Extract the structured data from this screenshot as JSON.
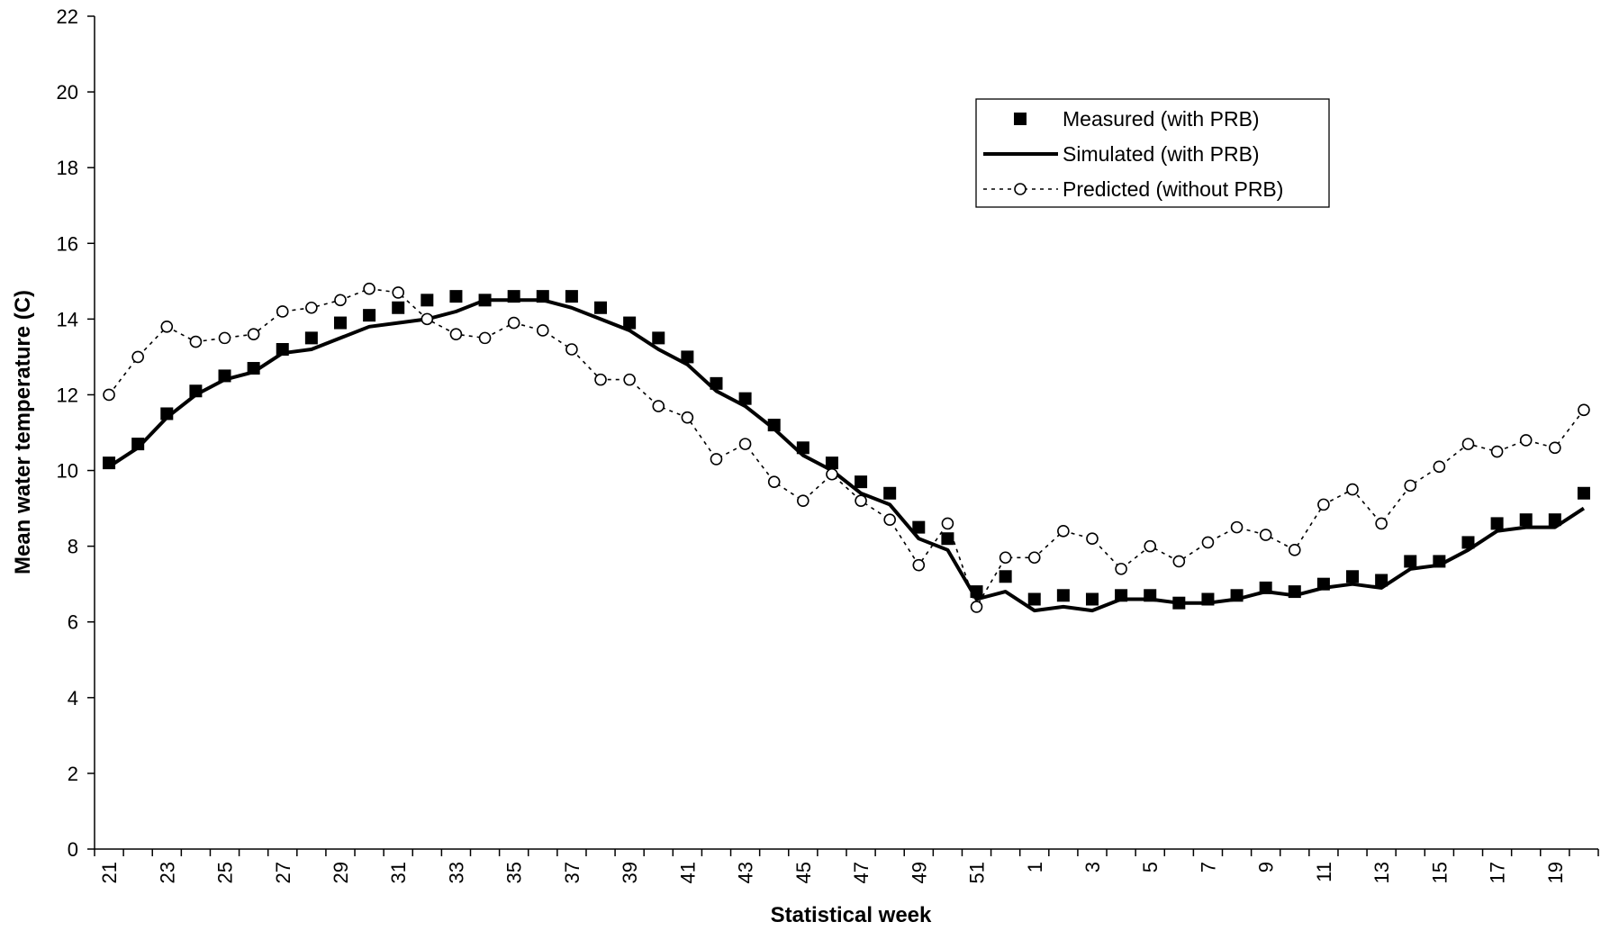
{
  "chart_data": {
    "type": "line",
    "title": "",
    "xlabel": "Statistical week",
    "ylabel": "Mean water temperature (C)",
    "ylim": [
      0,
      22
    ],
    "yticks": [
      0,
      2,
      4,
      6,
      8,
      10,
      12,
      14,
      16,
      18,
      20,
      22
    ],
    "grid": false,
    "legend_position": "top-right",
    "categories": [
      "21",
      "22",
      "23",
      "24",
      "25",
      "26",
      "27",
      "28",
      "29",
      "30",
      "31",
      "32",
      "33",
      "34",
      "35",
      "36",
      "37",
      "38",
      "39",
      "40",
      "41",
      "42",
      "43",
      "44",
      "45",
      "46",
      "47",
      "48",
      "49",
      "50",
      "51",
      "52",
      "1",
      "2",
      "3",
      "4",
      "5",
      "6",
      "7",
      "8",
      "9",
      "10",
      "11",
      "12",
      "13",
      "14",
      "15",
      "16",
      "17",
      "18",
      "19",
      "20"
    ],
    "xtick_labels": [
      "21",
      "",
      "23",
      "",
      "25",
      "",
      "27",
      "",
      "29",
      "",
      "31",
      "",
      "33",
      "",
      "35",
      "",
      "37",
      "",
      "39",
      "",
      "41",
      "",
      "43",
      "",
      "45",
      "",
      "47",
      "",
      "49",
      "",
      "51",
      "",
      "1",
      "",
      "3",
      "",
      "5",
      "",
      "7",
      "",
      "9",
      "",
      "11",
      "",
      "13",
      "",
      "15",
      "",
      "17",
      "",
      "19",
      ""
    ],
    "series": [
      {
        "name": "Measured (with PRB)",
        "style": "square-markers",
        "color": "#000000",
        "values": [
          10.2,
          10.7,
          11.5,
          12.1,
          12.5,
          12.7,
          13.2,
          13.5,
          13.9,
          14.1,
          14.3,
          14.5,
          14.6,
          14.5,
          14.6,
          14.6,
          14.6,
          14.3,
          13.9,
          13.5,
          13.0,
          12.3,
          11.9,
          11.2,
          10.6,
          10.2,
          9.7,
          9.4,
          8.5,
          8.2,
          6.8,
          7.2,
          6.6,
          6.7,
          6.6,
          6.7,
          6.7,
          6.5,
          6.6,
          6.7,
          6.9,
          6.8,
          7.0,
          7.2,
          7.1,
          7.6,
          7.6,
          8.1,
          8.6,
          8.7,
          8.7,
          9.4
        ]
      },
      {
        "name": "Simulated (with PRB)",
        "style": "solid-line",
        "color": "#000000",
        "values": [
          10.1,
          10.6,
          11.4,
          12.0,
          12.4,
          12.6,
          13.1,
          13.2,
          13.5,
          13.8,
          13.9,
          14.0,
          14.2,
          14.5,
          14.5,
          14.5,
          14.3,
          14.0,
          13.7,
          13.2,
          12.8,
          12.1,
          11.7,
          11.1,
          10.4,
          10.0,
          9.4,
          9.1,
          8.2,
          7.9,
          6.6,
          6.8,
          6.3,
          6.4,
          6.3,
          6.6,
          6.6,
          6.5,
          6.5,
          6.6,
          6.8,
          6.7,
          6.9,
          7.0,
          6.9,
          7.4,
          7.5,
          7.9,
          8.4,
          8.5,
          8.5,
          9.0
        ]
      },
      {
        "name": "Predicted (without PRB)",
        "style": "dotted-line-open-circles",
        "color": "#000000",
        "values": [
          12.0,
          13.0,
          13.8,
          13.4,
          13.5,
          13.6,
          14.2,
          14.3,
          14.5,
          14.8,
          14.7,
          14.0,
          13.6,
          13.5,
          13.9,
          13.7,
          13.2,
          12.4,
          12.4,
          11.7,
          11.4,
          10.3,
          10.7,
          9.7,
          9.2,
          9.9,
          9.2,
          8.7,
          7.5,
          8.6,
          6.4,
          7.7,
          7.7,
          8.4,
          8.2,
          7.4,
          8.0,
          7.6,
          8.1,
          8.5,
          8.3,
          7.9,
          9.1,
          9.5,
          8.6,
          9.6,
          10.1,
          10.7,
          10.5,
          10.8,
          10.6,
          11.6
        ]
      }
    ]
  }
}
